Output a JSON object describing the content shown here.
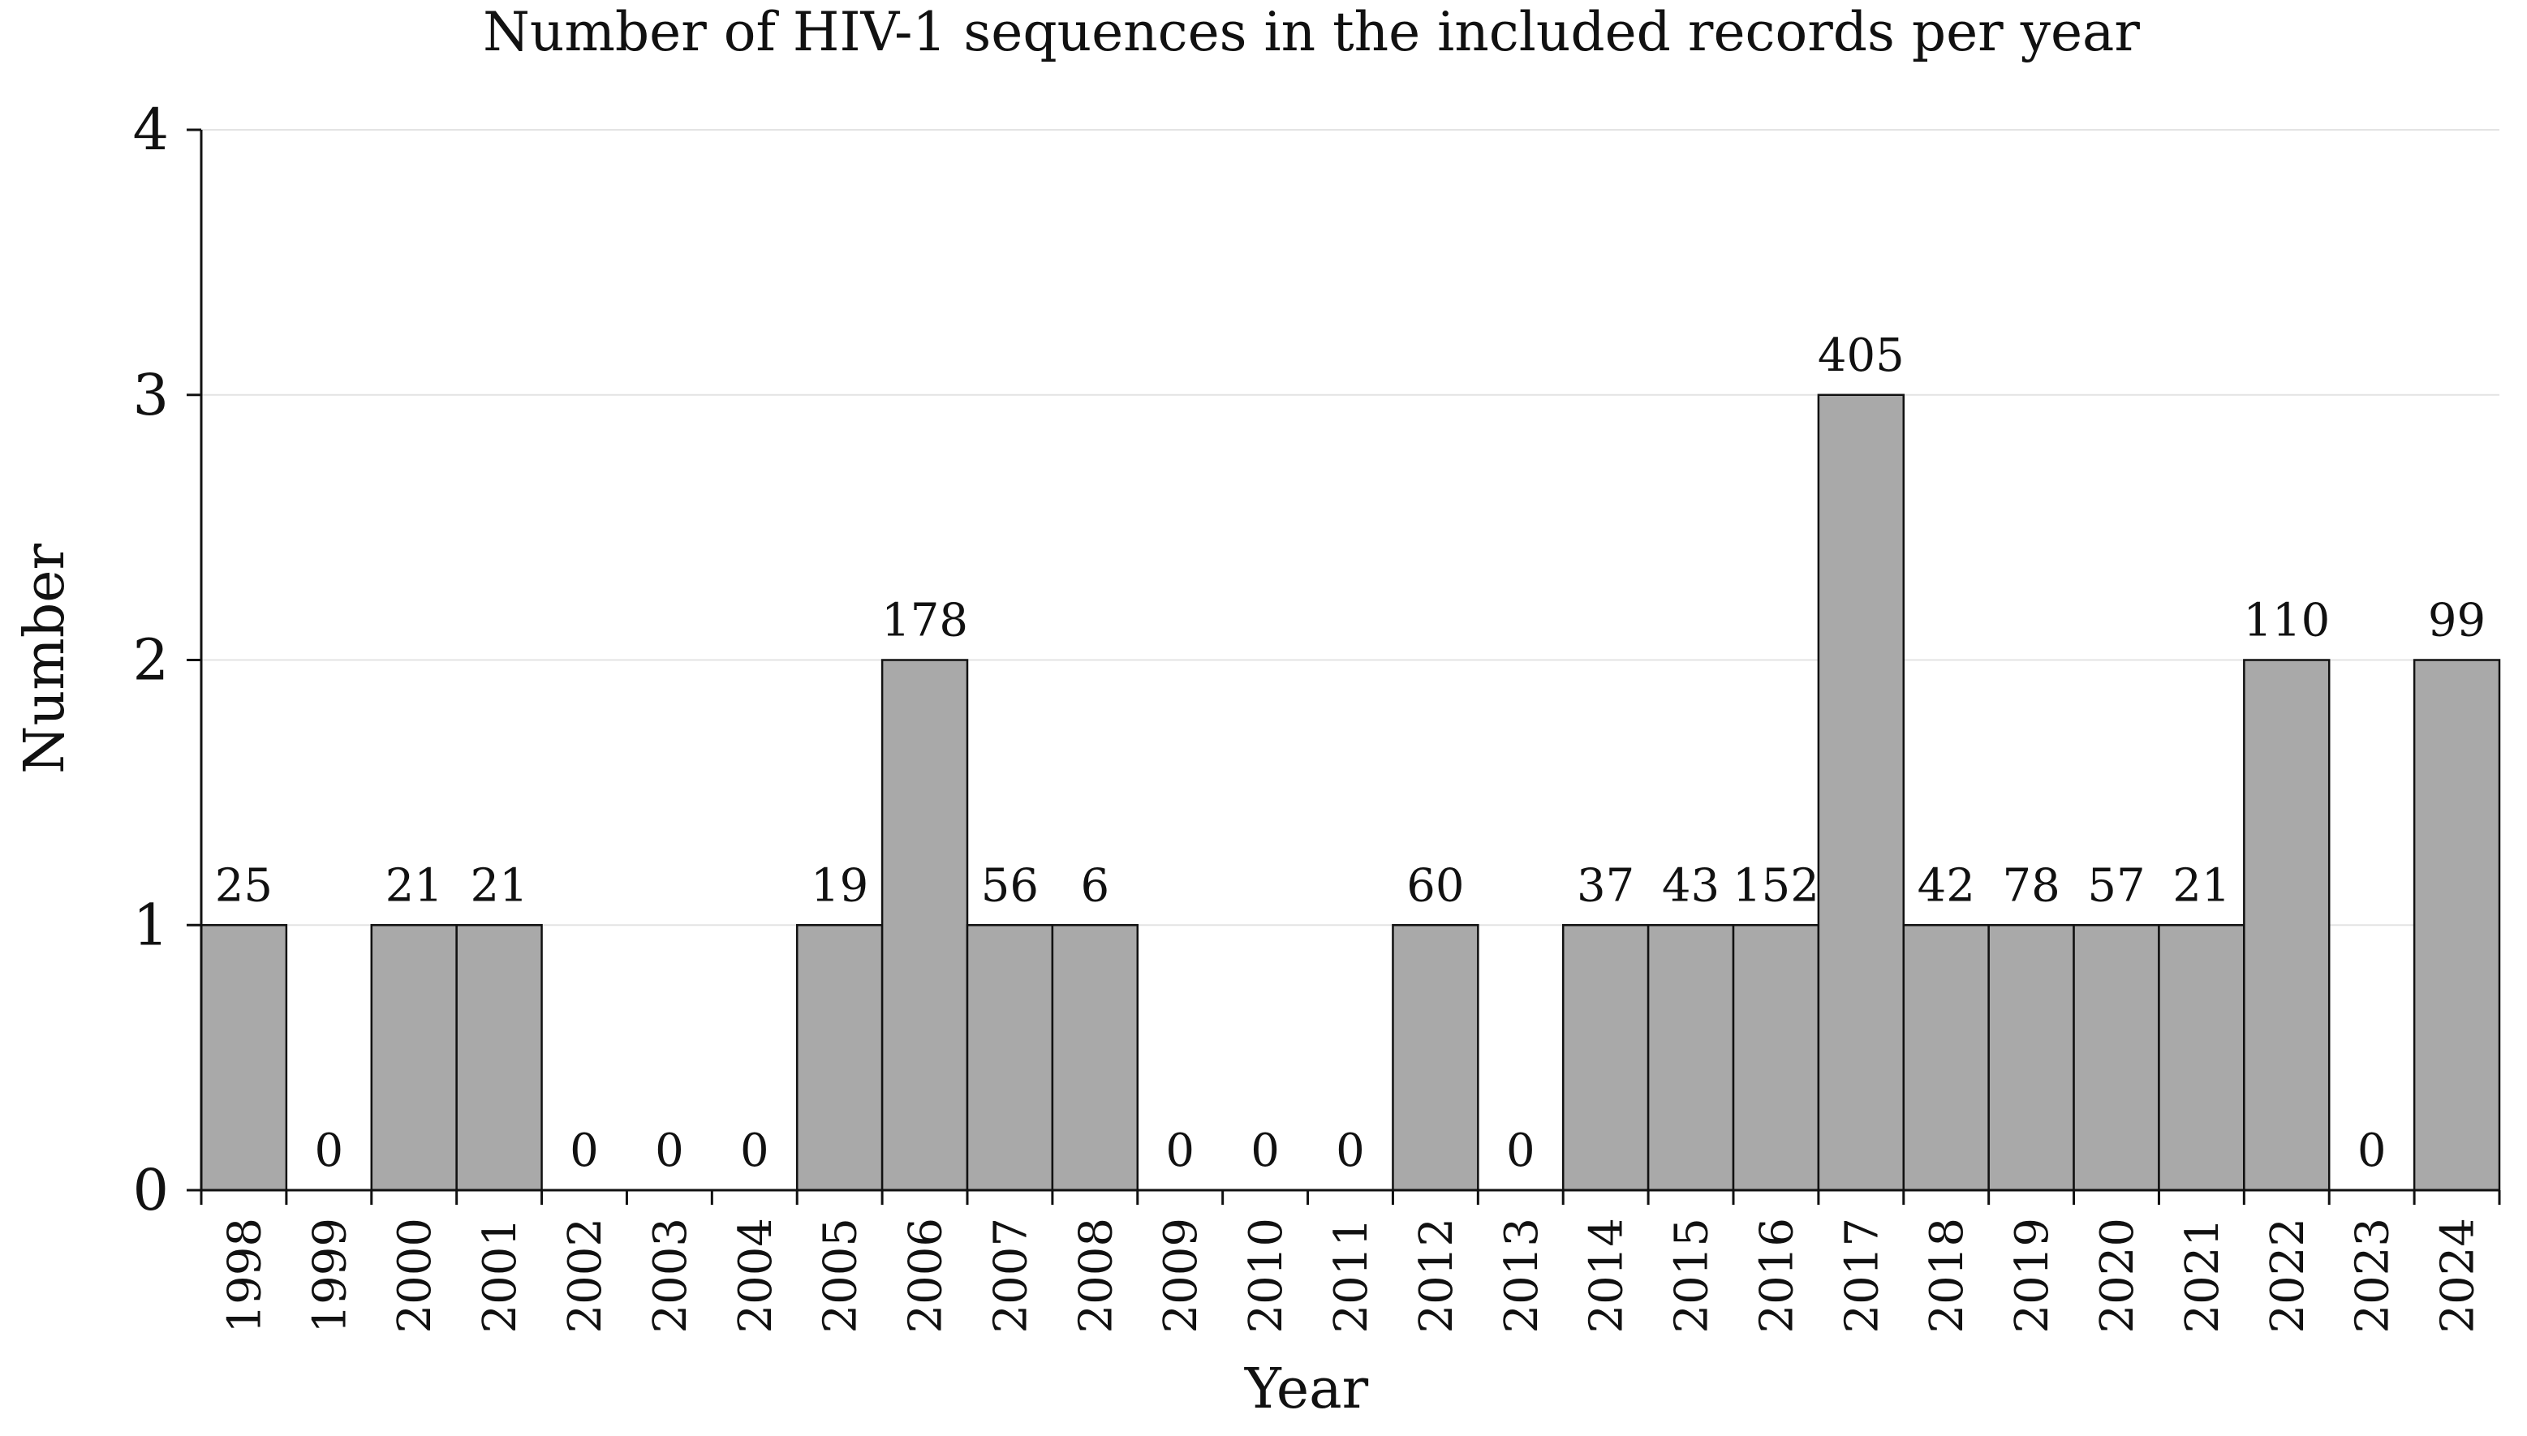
{
  "chart_data": {
    "type": "bar",
    "title": "Number of HIV-1 sequences in the included records per year",
    "xlabel": "Year",
    "ylabel": "Number",
    "ylim": [
      0,
      4
    ],
    "yticks": [
      "0",
      "1",
      "2",
      "3",
      "4"
    ],
    "grid": true,
    "categories": [
      "1998",
      "1999",
      "2000",
      "2001",
      "2002",
      "2003",
      "2004",
      "2005",
      "2006",
      "2007",
      "2008",
      "2009",
      "2010",
      "2011",
      "2012",
      "2013",
      "2014",
      "2015",
      "2016",
      "2017",
      "2018",
      "2019",
      "2020",
      "2021",
      "2022",
      "2023",
      "2024"
    ],
    "values": [
      1,
      0,
      1,
      1,
      0,
      0,
      0,
      1,
      2,
      1,
      1,
      0,
      0,
      0,
      1,
      0,
      1,
      1,
      1,
      3,
      1,
      1,
      1,
      1,
      2,
      0,
      2
    ],
    "data_labels": [
      "25",
      "0",
      "21",
      "21",
      "0",
      "0",
      "0",
      "19",
      "178",
      "56",
      "6",
      "0",
      "0",
      "0",
      "60",
      "0",
      "37",
      "43",
      "152",
      "405",
      "42",
      "78",
      "57",
      "21",
      "110",
      "0",
      "99"
    ],
    "bar_color": "#a9a9a9"
  }
}
